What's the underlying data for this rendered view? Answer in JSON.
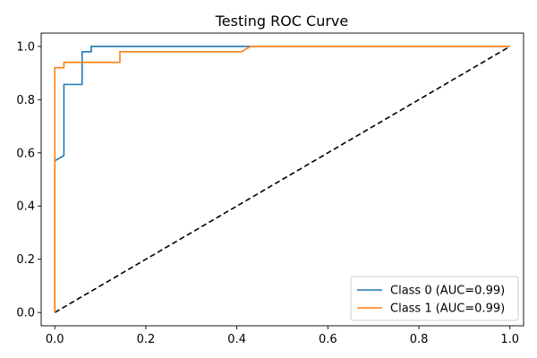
{
  "chart_data": {
    "type": "line",
    "title": "Testing ROC Curve",
    "xlabel": "",
    "ylabel": "",
    "xlim": [
      -0.03,
      1.03
    ],
    "ylim": [
      -0.05,
      1.05
    ],
    "xticks": [
      "0.0",
      "0.2",
      "0.4",
      "0.6",
      "0.8",
      "1.0"
    ],
    "yticks": [
      "0.0",
      "0.2",
      "0.4",
      "0.6",
      "0.8",
      "1.0"
    ],
    "xtick_values": [
      0.0,
      0.2,
      0.4,
      0.6,
      0.8,
      1.0
    ],
    "ytick_values": [
      0.0,
      0.2,
      0.4,
      0.6,
      0.8,
      1.0
    ],
    "grid": false,
    "legend_position": "bottom-right",
    "series": [
      {
        "name": "Class 0 (AUC=0.99)",
        "color": "#1f77b4",
        "x": [
          0.0,
          0.0,
          0.02,
          0.02,
          0.06,
          0.06,
          0.08,
          0.08,
          0.43,
          1.0
        ],
        "y": [
          0.0,
          0.57,
          0.59,
          0.857,
          0.857,
          0.98,
          0.98,
          1.0,
          1.0,
          1.0
        ]
      },
      {
        "name": "Class 1 (AUC=0.99)",
        "color": "#ff7f0e",
        "x": [
          0.0,
          0.0,
          0.02,
          0.02,
          0.143,
          0.143,
          0.41,
          0.43,
          1.0
        ],
        "y": [
          0.0,
          0.92,
          0.92,
          0.94,
          0.94,
          0.98,
          0.98,
          1.0,
          1.0
        ]
      }
    ],
    "reference_line": {
      "x": [
        0.0,
        1.0
      ],
      "y": [
        0.0,
        1.0
      ],
      "color": "#000000",
      "style": "dashed"
    }
  }
}
